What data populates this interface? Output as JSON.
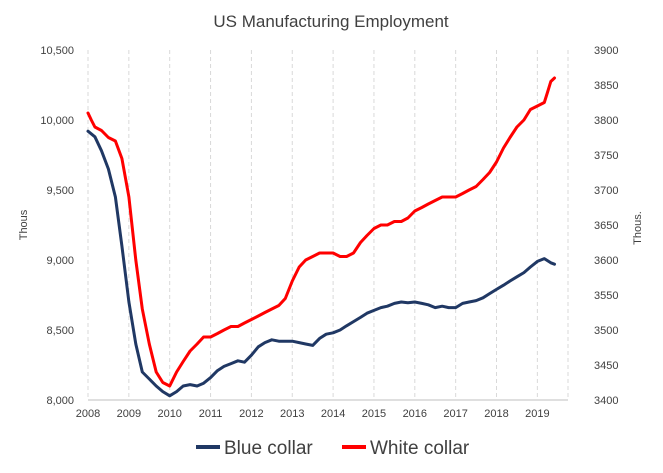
{
  "chart_data": {
    "type": "line",
    "title": "US Manufacturing Employment",
    "xlabel": "",
    "ylabel_left": "Thous",
    "ylabel_right": "Thous.",
    "x_ticks": [
      "2008",
      "2009",
      "2010",
      "2011",
      "2012",
      "2013",
      "2014",
      "2015",
      "2016",
      "2017",
      "2018",
      "2019"
    ],
    "xlim": [
      2008,
      2019.75
    ],
    "y_left_ticks": [
      "8,000",
      "8,500",
      "9,000",
      "9,500",
      "10,000",
      "10,500"
    ],
    "y_left_values": [
      8000,
      8500,
      9000,
      9500,
      10000,
      10500
    ],
    "ylim_left": [
      8000,
      10500
    ],
    "y_right_ticks": [
      "3400",
      "3450",
      "3500",
      "3550",
      "3600",
      "3650",
      "3700",
      "3750",
      "3800",
      "3850",
      "3900"
    ],
    "y_right_values": [
      3400,
      3450,
      3500,
      3550,
      3600,
      3650,
      3700,
      3750,
      3800,
      3850,
      3900
    ],
    "ylim_right": [
      3400,
      3900
    ],
    "grid": "vertical-dashed",
    "legend_position": "bottom",
    "series": [
      {
        "name": "Blue collar",
        "axis": "left",
        "color": "#203864",
        "points": [
          [
            2008.0,
            9920
          ],
          [
            2008.17,
            9880
          ],
          [
            2008.33,
            9780
          ],
          [
            2008.5,
            9650
          ],
          [
            2008.67,
            9450
          ],
          [
            2008.83,
            9100
          ],
          [
            2009.0,
            8700
          ],
          [
            2009.17,
            8400
          ],
          [
            2009.33,
            8200
          ],
          [
            2009.5,
            8150
          ],
          [
            2009.67,
            8100
          ],
          [
            2009.83,
            8060
          ],
          [
            2010.0,
            8030
          ],
          [
            2010.17,
            8060
          ],
          [
            2010.33,
            8100
          ],
          [
            2010.5,
            8110
          ],
          [
            2010.67,
            8100
          ],
          [
            2010.83,
            8120
          ],
          [
            2011.0,
            8160
          ],
          [
            2011.17,
            8210
          ],
          [
            2011.33,
            8240
          ],
          [
            2011.5,
            8260
          ],
          [
            2011.67,
            8280
          ],
          [
            2011.83,
            8270
          ],
          [
            2012.0,
            8320
          ],
          [
            2012.17,
            8380
          ],
          [
            2012.33,
            8410
          ],
          [
            2012.5,
            8430
          ],
          [
            2012.67,
            8420
          ],
          [
            2012.83,
            8420
          ],
          [
            2013.0,
            8420
          ],
          [
            2013.17,
            8410
          ],
          [
            2013.33,
            8400
          ],
          [
            2013.5,
            8390
          ],
          [
            2013.67,
            8440
          ],
          [
            2013.83,
            8470
          ],
          [
            2014.0,
            8480
          ],
          [
            2014.17,
            8500
          ],
          [
            2014.33,
            8530
          ],
          [
            2014.5,
            8560
          ],
          [
            2014.67,
            8590
          ],
          [
            2014.83,
            8620
          ],
          [
            2015.0,
            8640
          ],
          [
            2015.17,
            8660
          ],
          [
            2015.33,
            8670
          ],
          [
            2015.5,
            8690
          ],
          [
            2015.67,
            8700
          ],
          [
            2015.83,
            8695
          ],
          [
            2016.0,
            8700
          ],
          [
            2016.17,
            8690
          ],
          [
            2016.33,
            8680
          ],
          [
            2016.5,
            8660
          ],
          [
            2016.67,
            8670
          ],
          [
            2016.83,
            8660
          ],
          [
            2017.0,
            8660
          ],
          [
            2017.17,
            8690
          ],
          [
            2017.33,
            8700
          ],
          [
            2017.5,
            8710
          ],
          [
            2017.67,
            8730
          ],
          [
            2017.83,
            8760
          ],
          [
            2018.0,
            8790
          ],
          [
            2018.17,
            8820
          ],
          [
            2018.33,
            8850
          ],
          [
            2018.5,
            8880
          ],
          [
            2018.67,
            8910
          ],
          [
            2018.83,
            8950
          ],
          [
            2019.0,
            8990
          ],
          [
            2019.17,
            9010
          ],
          [
            2019.33,
            8980
          ],
          [
            2019.42,
            8970
          ]
        ]
      },
      {
        "name": "White collar",
        "axis": "right",
        "color": "#ff0000",
        "points": [
          [
            2008.0,
            3810
          ],
          [
            2008.08,
            3800
          ],
          [
            2008.17,
            3790
          ],
          [
            2008.33,
            3785
          ],
          [
            2008.5,
            3775
          ],
          [
            2008.67,
            3770
          ],
          [
            2008.83,
            3745
          ],
          [
            2009.0,
            3690
          ],
          [
            2009.17,
            3600
          ],
          [
            2009.33,
            3530
          ],
          [
            2009.5,
            3480
          ],
          [
            2009.67,
            3440
          ],
          [
            2009.83,
            3425
          ],
          [
            2010.0,
            3420
          ],
          [
            2010.17,
            3440
          ],
          [
            2010.33,
            3455
          ],
          [
            2010.5,
            3470
          ],
          [
            2010.67,
            3480
          ],
          [
            2010.83,
            3490
          ],
          [
            2011.0,
            3490
          ],
          [
            2011.17,
            3495
          ],
          [
            2011.33,
            3500
          ],
          [
            2011.5,
            3505
          ],
          [
            2011.67,
            3505
          ],
          [
            2011.83,
            3510
          ],
          [
            2012.0,
            3515
          ],
          [
            2012.17,
            3520
          ],
          [
            2012.33,
            3525
          ],
          [
            2012.5,
            3530
          ],
          [
            2012.67,
            3535
          ],
          [
            2012.83,
            3545
          ],
          [
            2013.0,
            3570
          ],
          [
            2013.17,
            3590
          ],
          [
            2013.33,
            3600
          ],
          [
            2013.5,
            3605
          ],
          [
            2013.67,
            3610
          ],
          [
            2013.83,
            3610
          ],
          [
            2014.0,
            3610
          ],
          [
            2014.17,
            3605
          ],
          [
            2014.33,
            3605
          ],
          [
            2014.5,
            3610
          ],
          [
            2014.67,
            3625
          ],
          [
            2014.83,
            3635
          ],
          [
            2015.0,
            3645
          ],
          [
            2015.17,
            3650
          ],
          [
            2015.33,
            3650
          ],
          [
            2015.5,
            3655
          ],
          [
            2015.67,
            3655
          ],
          [
            2015.83,
            3660
          ],
          [
            2016.0,
            3670
          ],
          [
            2016.17,
            3675
          ],
          [
            2016.33,
            3680
          ],
          [
            2016.5,
            3685
          ],
          [
            2016.67,
            3690
          ],
          [
            2016.83,
            3690
          ],
          [
            2017.0,
            3690
          ],
          [
            2017.17,
            3695
          ],
          [
            2017.33,
            3700
          ],
          [
            2017.5,
            3705
          ],
          [
            2017.67,
            3715
          ],
          [
            2017.83,
            3725
          ],
          [
            2018.0,
            3740
          ],
          [
            2018.17,
            3760
          ],
          [
            2018.33,
            3775
          ],
          [
            2018.5,
            3790
          ],
          [
            2018.67,
            3800
          ],
          [
            2018.83,
            3815
          ],
          [
            2019.0,
            3820
          ],
          [
            2019.17,
            3825
          ],
          [
            2019.25,
            3840
          ],
          [
            2019.33,
            3855
          ],
          [
            2019.42,
            3860
          ]
        ]
      }
    ]
  }
}
